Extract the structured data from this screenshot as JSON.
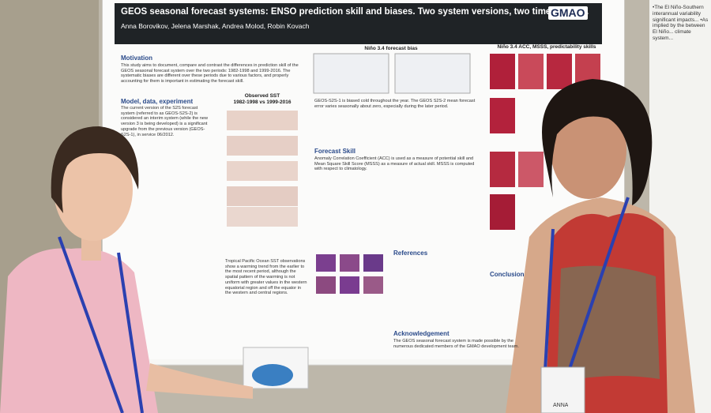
{
  "header": {
    "title": "GEOS seasonal forecast systems: ENSO prediction skill and biases.  Two system versions, two time periods.",
    "authors": "Anna Borovikov, Jelena Marshak, Andrea Molod, Robin Kovach",
    "logo": "GMAO"
  },
  "sections": [
    {
      "heading": "Motivation",
      "text": "This study aims to document, compare and contrast the differences in prediction skill of the GEOS seasonal forecast system over the two periods: 1982-1998 and 1999-2016. The systematic biases are different over these periods due to various factors, and properly accounting for them is important in estimating the forecast skill."
    },
    {
      "heading": "Model, data, experiment",
      "text": "The current version of the S2S forecast system (referred to as GEOS-S2S-2) is considered an interim system (while the new version 3 is being developed) is a significant upgrade from the previous version (GEOS-S2S-1), in service 06/2012."
    },
    {
      "heading": "",
      "text": "GEOS-S2S-1 is biased cold throughout the year. The GEOS S2S-2 mean forecast error varies seasonally about zero, especially during the later period."
    },
    {
      "heading": "Forecast Skill",
      "text": "Anomaly Correlation Coefficient (ACC) is used as a measure of potential skill and Mean Square Skill Score (MSSS) as a measure of actual skill. MSSS is computed with respect to climatology."
    },
    {
      "heading": "",
      "text": "Tropical Pacific Ocean SST observations show a warming trend from the earlier to the most recent period, although the spatial pattern of the warming is not uniform with greater values in the western equatorial region and off the equator in the western and central regions."
    },
    {
      "heading": "References",
      "text": ""
    },
    {
      "heading": "Acknowledgement",
      "text": "The GEOS seasonal forecast system is made possible by the numerous dedicated members of the GMAO development team."
    },
    {
      "heading": "Conclusion",
      "text": ""
    }
  ],
  "figures": [
    {
      "title": "Observed SST",
      "subtitle": "1982-1998 vs 1999-2016"
    },
    {
      "title": "Niño 3.4 forecast bias",
      "subtitle": ""
    },
    {
      "title": "Niño 3.4 ACC, MSSS, predictability skills",
      "subtitle": ""
    }
  ],
  "neighbor": {
    "text": "•The El Niño-Southern interannual variability significant impacts... •As implied by the between El Niño... climate system..."
  },
  "badge": "ANNA"
}
